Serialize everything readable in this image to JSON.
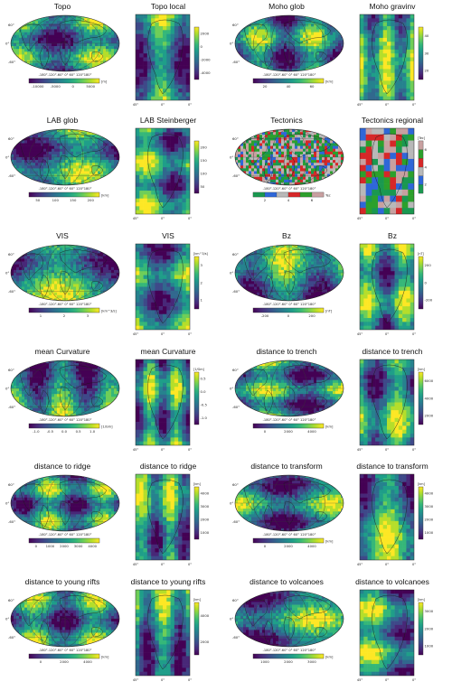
{
  "figure": {
    "panels": [
      {
        "id": "topo-glob",
        "title": "Topo",
        "kind": "glob",
        "cmap": "viridis",
        "ticks": [
          "-10000",
          "-5000",
          "0",
          "5000"
        ],
        "unit": "[m]"
      },
      {
        "id": "topo-local",
        "title": "Topo local",
        "kind": "local",
        "cmap": "viridis",
        "ticks": [
          "2000",
          "0",
          "-2000",
          "-4000"
        ],
        "unit": ""
      },
      {
        "id": "moho-glob",
        "title": "Moho glob",
        "kind": "glob",
        "cmap": "viridis",
        "ticks": [
          "20",
          "40",
          "60"
        ],
        "unit": "[km]"
      },
      {
        "id": "moho-gravinv",
        "title": "Moho gravinv",
        "kind": "local",
        "cmap": "viridis",
        "ticks": [
          "40",
          "30",
          "20"
        ],
        "unit": ""
      },
      {
        "id": "lab-glob",
        "title": "LAB glob",
        "kind": "glob",
        "cmap": "viridis",
        "ticks": [
          "50",
          "100",
          "150",
          "200"
        ],
        "unit": "[km]"
      },
      {
        "id": "lab-steinberger",
        "title": "LAB Steinberger",
        "kind": "local",
        "cmap": "viridis",
        "ticks": [
          "200",
          "150",
          "100",
          "50"
        ],
        "unit": ""
      },
      {
        "id": "tectonics-glob",
        "title": "Tectonics",
        "kind": "glob",
        "cmap": "tect",
        "ticks": [
          "2",
          "4",
          "6"
        ],
        "unit": "Tec"
      },
      {
        "id": "tectonics-regional",
        "title": "Tectonics regional",
        "kind": "local",
        "cmap": "tect",
        "ticks": [
          "6",
          "4",
          "2"
        ],
        "unit": "[Tec]"
      },
      {
        "id": "vis-glob",
        "title": "VIS",
        "kind": "glob",
        "cmap": "viridis",
        "ticks": [
          "1",
          "2",
          "3"
        ],
        "unit": "[km^3/s]"
      },
      {
        "id": "vis-local",
        "title": "VIS",
        "kind": "local",
        "cmap": "viridis",
        "ticks": [
          "3",
          "2",
          "1"
        ],
        "unit": "[km^3/s]"
      },
      {
        "id": "bz-glob",
        "title": "Bz",
        "kind": "glob",
        "cmap": "viridis",
        "ticks": [
          "-200",
          "0",
          "200"
        ],
        "unit": "[nT]"
      },
      {
        "id": "bz-local",
        "title": "Bz",
        "kind": "local",
        "cmap": "viridis",
        "ticks": [
          "200",
          "0",
          "-200"
        ],
        "unit": "[nT]"
      },
      {
        "id": "curv-glob",
        "title": "mean Curvature",
        "kind": "glob",
        "cmap": "viridis",
        "ticks": [
          "-1.0",
          "-0.5",
          "0.0",
          "0.5",
          "1.0"
        ],
        "unit": "[1/Gm]"
      },
      {
        "id": "curv-local",
        "title": "mean Curvature",
        "kind": "local",
        "cmap": "viridis",
        "ticks": [
          "0.5",
          "0.0",
          "-0.5",
          "-1.0"
        ],
        "unit": "[1/Gm]"
      },
      {
        "id": "trench-glob",
        "title": "distance to trench",
        "kind": "glob",
        "cmap": "viridis",
        "ticks": [
          "0",
          "2000",
          "4000"
        ],
        "unit": "[km]"
      },
      {
        "id": "trench-local",
        "title": "distance to trench",
        "kind": "local",
        "cmap": "viridis",
        "ticks": [
          "6000",
          "4000",
          "2000"
        ],
        "unit": "[km]"
      },
      {
        "id": "ridge-glob",
        "title": "distance to ridge",
        "kind": "glob",
        "cmap": "viridis",
        "ticks": [
          "0",
          "1000",
          "2000",
          "3000",
          "4000"
        ],
        "unit": ""
      },
      {
        "id": "ridge-local",
        "title": "distance to ridge",
        "kind": "local",
        "cmap": "viridis",
        "ticks": [
          "4000",
          "3000",
          "2000",
          "1000"
        ],
        "unit": "[km]"
      },
      {
        "id": "transform-glob",
        "title": "distance to transform",
        "kind": "glob",
        "cmap": "viridis",
        "ticks": [
          "0",
          "2000",
          "4000"
        ],
        "unit": "[km]"
      },
      {
        "id": "transform-local",
        "title": "distance to transform",
        "kind": "local",
        "cmap": "viridis",
        "ticks": [
          "4000",
          "3000",
          "2000",
          "1000"
        ],
        "unit": "[km]"
      },
      {
        "id": "rifts-glob",
        "title": "distance to young rifts",
        "kind": "glob",
        "cmap": "viridis",
        "ticks": [
          "0",
          "2000",
          "4000"
        ],
        "unit": "[km]"
      },
      {
        "id": "rifts-local",
        "title": "distance to young rifts",
        "kind": "local",
        "cmap": "viridis",
        "ticks": [
          "4000",
          "2000"
        ],
        "unit": "[km]"
      },
      {
        "id": "volc-glob",
        "title": "distance to volcanoes",
        "kind": "glob",
        "cmap": "viridis",
        "ticks": [
          "1000",
          "2000",
          "3000"
        ],
        "unit": "[km]"
      },
      {
        "id": "volc-local",
        "title": "distance to volcanoes",
        "kind": "local",
        "cmap": "viridis",
        "ticks": [
          "3000",
          "2000",
          "1000"
        ],
        "unit": "[km]"
      }
    ],
    "glob_lat_labels": [
      "60°",
      "0°",
      "-60°"
    ],
    "glob_lon_labels": "-180°-120°-60°  0°  60° 120°180°",
    "local_x_labels": [
      "45°",
      "0°",
      "0°"
    ],
    "colors": {
      "viridis": [
        "#440154",
        "#482878",
        "#3e4989",
        "#31688e",
        "#26828e",
        "#1f9e89",
        "#35b779",
        "#6ece58",
        "#b5de2b",
        "#fde725"
      ],
      "tect": [
        "#1a9850",
        "#2f67d8",
        "#b8b8b8",
        "#d62728",
        "#2ca02c",
        "#c8a0a0"
      ],
      "graticule": "#3a3a3a",
      "coast": "#1a1a1a"
    }
  },
  "chart_data": [
    {
      "type": "heatmap",
      "title": "Topo",
      "colorbar_ticks": [
        -10000,
        -5000,
        0,
        5000
      ],
      "unit": "[m]"
    },
    {
      "type": "heatmap",
      "title": "Topo local",
      "colorbar_ticks": [
        2000,
        0,
        -2000,
        -4000
      ]
    },
    {
      "type": "heatmap",
      "title": "Moho glob",
      "colorbar_ticks": [
        20,
        40,
        60
      ],
      "unit": "[km]"
    },
    {
      "type": "heatmap",
      "title": "Moho gravinv",
      "colorbar_ticks": [
        40,
        30,
        20
      ]
    },
    {
      "type": "heatmap",
      "title": "LAB glob",
      "colorbar_ticks": [
        50,
        100,
        150,
        200
      ],
      "unit": "[km]"
    },
    {
      "type": "heatmap",
      "title": "LAB Steinberger",
      "colorbar_ticks": [
        200,
        150,
        100,
        50
      ]
    },
    {
      "type": "heatmap",
      "title": "Tectonics",
      "colorbar_ticks": [
        2,
        4,
        6
      ],
      "unit": "Tec"
    },
    {
      "type": "heatmap",
      "title": "Tectonics regional",
      "colorbar_ticks": [
        6,
        4,
        2
      ],
      "unit": "[Tec]"
    },
    {
      "type": "heatmap",
      "title": "VIS",
      "colorbar_ticks": [
        1,
        2,
        3
      ],
      "unit": "[km^3/s]"
    },
    {
      "type": "heatmap",
      "title": "VIS",
      "colorbar_ticks": [
        3,
        2,
        1
      ],
      "unit": "[km^3/s]"
    },
    {
      "type": "heatmap",
      "title": "Bz",
      "colorbar_ticks": [
        -200,
        0,
        200
      ],
      "unit": "[nT]"
    },
    {
      "type": "heatmap",
      "title": "Bz",
      "colorbar_ticks": [
        200,
        0,
        -200
      ],
      "unit": "[nT]"
    },
    {
      "type": "heatmap",
      "title": "mean Curvature",
      "colorbar_ticks": [
        -1.0,
        -0.5,
        0.0,
        0.5,
        1.0
      ],
      "unit": "[1/Gm]"
    },
    {
      "type": "heatmap",
      "title": "mean Curvature",
      "colorbar_ticks": [
        0.5,
        0.0,
        -0.5,
        -1.0
      ],
      "unit": "[1/Gm]"
    },
    {
      "type": "heatmap",
      "title": "distance to trench",
      "colorbar_ticks": [
        0,
        2000,
        4000
      ],
      "unit": "[km]"
    },
    {
      "type": "heatmap",
      "title": "distance to trench",
      "colorbar_ticks": [
        6000,
        4000,
        2000
      ],
      "unit": "[km]"
    },
    {
      "type": "heatmap",
      "title": "distance to ridge",
      "colorbar_ticks": [
        0,
        1000,
        2000,
        3000,
        4000
      ]
    },
    {
      "type": "heatmap",
      "title": "distance to ridge",
      "colorbar_ticks": [
        4000,
        3000,
        2000,
        1000
      ],
      "unit": "[km]"
    },
    {
      "type": "heatmap",
      "title": "distance to transform",
      "colorbar_ticks": [
        0,
        2000,
        4000
      ],
      "unit": "[km]"
    },
    {
      "type": "heatmap",
      "title": "distance to transform",
      "colorbar_ticks": [
        4000,
        3000,
        2000,
        1000
      ],
      "unit": "[km]"
    },
    {
      "type": "heatmap",
      "title": "distance to young rifts",
      "colorbar_ticks": [
        0,
        2000,
        4000
      ],
      "unit": "[km]"
    },
    {
      "type": "heatmap",
      "title": "distance to young rifts",
      "colorbar_ticks": [
        4000,
        2000
      ],
      "unit": "[km]"
    },
    {
      "type": "heatmap",
      "title": "distance to volcanoes",
      "colorbar_ticks": [
        1000,
        2000,
        3000
      ],
      "unit": "[km]"
    },
    {
      "type": "heatmap",
      "title": "distance to volcanoes",
      "colorbar_ticks": [
        3000,
        2000,
        1000
      ],
      "unit": "[km]"
    }
  ]
}
